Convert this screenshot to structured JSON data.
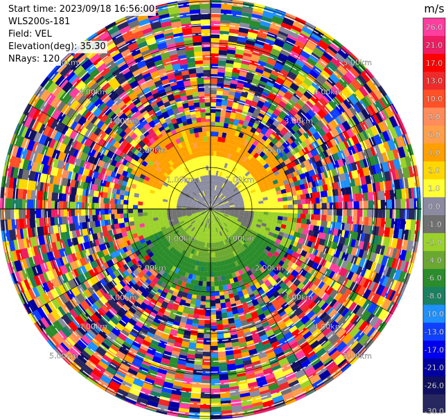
{
  "header": {
    "start_time": "Start time: 2023/09/18 16:56:00",
    "instrument": "WLS200s-181",
    "field": "Field: VEL",
    "elevation": "Elevation(deg): 35.30",
    "nrays": "NRays: 120"
  },
  "chart_data": {
    "type": "heatmap",
    "projection": "polar (PPI)",
    "range_ring_labels": [
      "1.00km",
      "2.00km",
      "3.00km",
      "4.00km",
      "5.00km"
    ],
    "range_rings_km": [
      1,
      2,
      3,
      4,
      5
    ],
    "nrays": 120,
    "colorbar": {
      "unit": "m/s",
      "tick_labels": [
        "26.0",
        "21.0",
        "17.0",
        "13.0",
        "10.0",
        "8.0",
        "6.0",
        "4.0",
        "2.0",
        "1.0",
        "0.0",
        "-1.0",
        "-2.0",
        "-4.0",
        "-6.0",
        "-8.0",
        "-10.0",
        "-13.0",
        "-17.0",
        "-21.0",
        "-26.0",
        "-30.0"
      ],
      "colors": [
        "#ff3ea0",
        "#ee1d63",
        "#ff0000",
        "#ee2a2a",
        "#ff5028",
        "#ff8c5a",
        "#ff9f4a",
        "#ffa000",
        "#ffd700",
        "#ffff33",
        "#8a8aa0",
        "#707070",
        "#9ad22a",
        "#6aa830",
        "#2a8c2a",
        "#198060",
        "#1e90ff",
        "#1040ff",
        "#0000ee",
        "#0000a0",
        "#101060",
        "#282860"
      ],
      "range": [
        -30.0,
        26.0
      ]
    }
  }
}
